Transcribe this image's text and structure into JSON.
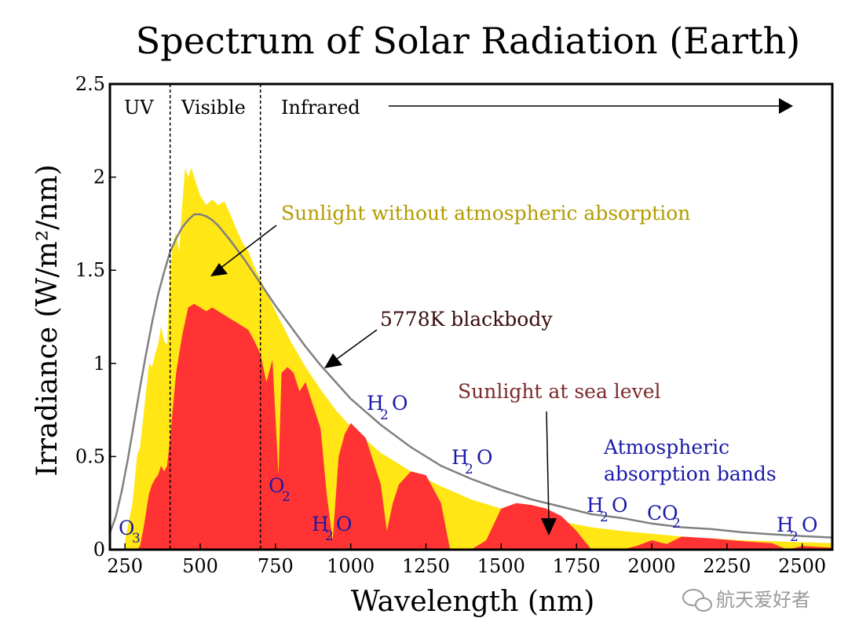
{
  "chart_data": {
    "type": "area",
    "title": "Spectrum of Solar Radiation (Earth)",
    "xlabel": "Wavelength (nm)",
    "ylabel": "Irradiance (W/m²/nm)",
    "xlim": [
      200,
      2600
    ],
    "ylim": [
      0,
      2.5
    ],
    "xticks": [
      "250",
      "500",
      "750",
      "1000",
      "1250",
      "1500",
      "1750",
      "2000",
      "2250",
      "2500"
    ],
    "yticks": [
      "0",
      "0.5",
      "1",
      "1.5",
      "2",
      "2.5"
    ],
    "grid": false,
    "regions": [
      {
        "label": "UV",
        "boundary_nm": 400
      },
      {
        "label": "Visible",
        "boundary_nm": 700
      },
      {
        "label": "Infrared",
        "boundary_nm": null
      }
    ],
    "series": [
      {
        "name": "Sunlight without atmospheric absorption",
        "color": "#ffe614",
        "x": [
          250,
          275,
          290,
          300,
          310,
          320,
          330,
          340,
          350,
          360,
          370,
          380,
          390,
          400,
          410,
          420,
          430,
          440,
          450,
          460,
          470,
          480,
          490,
          500,
          520,
          540,
          560,
          580,
          600,
          620,
          640,
          660,
          680,
          700,
          750,
          800,
          850,
          900,
          950,
          1000,
          1100,
          1200,
          1300,
          1400,
          1500,
          1600,
          1700,
          1800,
          1900,
          2000,
          2100,
          2200,
          2300,
          2400,
          2500,
          2600
        ],
        "values": [
          0.05,
          0.25,
          0.5,
          0.55,
          0.7,
          0.85,
          1.0,
          0.98,
          1.05,
          1.1,
          1.2,
          1.12,
          1.1,
          1.5,
          1.65,
          1.7,
          1.6,
          1.85,
          2.05,
          2.0,
          2.05,
          2.0,
          1.95,
          1.9,
          1.85,
          1.88,
          1.85,
          1.87,
          1.8,
          1.72,
          1.65,
          1.6,
          1.52,
          1.45,
          1.28,
          1.12,
          0.98,
          0.86,
          0.75,
          0.66,
          0.52,
          0.42,
          0.34,
          0.27,
          0.22,
          0.18,
          0.15,
          0.12,
          0.1,
          0.085,
          0.07,
          0.06,
          0.05,
          0.045,
          0.04,
          0.035
        ]
      },
      {
        "name": "5778K blackbody",
        "color": "#808080",
        "x": [
          200,
          220,
          240,
          260,
          280,
          300,
          320,
          340,
          360,
          380,
          400,
          420,
          440,
          460,
          480,
          500,
          520,
          540,
          560,
          580,
          600,
          650,
          700,
          750,
          800,
          850,
          900,
          950,
          1000,
          1100,
          1200,
          1300,
          1400,
          1500,
          1600,
          1700,
          1800,
          1900,
          2000,
          2100,
          2200,
          2300,
          2400,
          2500,
          2600
        ],
        "values": [
          0.09,
          0.18,
          0.32,
          0.49,
          0.68,
          0.87,
          1.05,
          1.22,
          1.37,
          1.49,
          1.6,
          1.67,
          1.73,
          1.77,
          1.8,
          1.8,
          1.79,
          1.77,
          1.74,
          1.7,
          1.66,
          1.55,
          1.43,
          1.31,
          1.2,
          1.09,
          0.99,
          0.9,
          0.81,
          0.67,
          0.55,
          0.45,
          0.38,
          0.32,
          0.27,
          0.23,
          0.19,
          0.17,
          0.14,
          0.12,
          0.11,
          0.093,
          0.082,
          0.073,
          0.065
        ]
      },
      {
        "name": "Sunlight at sea level",
        "color": "#ff3333",
        "x": [
          290,
          300,
          310,
          320,
          330,
          340,
          350,
          360,
          370,
          380,
          390,
          400,
          420,
          440,
          460,
          480,
          500,
          520,
          540,
          560,
          580,
          600,
          620,
          640,
          660,
          680,
          700,
          720,
          740,
          760,
          770,
          790,
          810,
          830,
          850,
          870,
          900,
          920,
          940,
          960,
          980,
          1000,
          1050,
          1100,
          1120,
          1140,
          1160,
          1200,
          1250,
          1300,
          1330,
          1350,
          1400,
          1450,
          1500,
          1550,
          1600,
          1650,
          1700,
          1750,
          1800,
          1850,
          1900,
          1950,
          2000,
          2050,
          2100,
          2200,
          2300,
          2400,
          2450,
          2500,
          2600
        ],
        "values": [
          0.0,
          0.02,
          0.1,
          0.2,
          0.3,
          0.35,
          0.38,
          0.4,
          0.45,
          0.42,
          0.45,
          0.6,
          0.95,
          1.15,
          1.3,
          1.32,
          1.3,
          1.28,
          1.3,
          1.28,
          1.26,
          1.24,
          1.22,
          1.2,
          1.18,
          1.12,
          1.05,
          0.9,
          1.02,
          0.4,
          0.95,
          0.98,
          0.95,
          0.85,
          0.9,
          0.8,
          0.65,
          0.3,
          0.05,
          0.5,
          0.62,
          0.68,
          0.6,
          0.35,
          0.1,
          0.25,
          0.35,
          0.42,
          0.4,
          0.25,
          0.0,
          0.0,
          0.0,
          0.05,
          0.22,
          0.25,
          0.24,
          0.22,
          0.18,
          0.1,
          0.0,
          0.0,
          0.0,
          0.02,
          0.05,
          0.03,
          0.07,
          0.06,
          0.045,
          0.035,
          0.0,
          0.02,
          0.01
        ]
      }
    ],
    "annotations": [
      {
        "text": "Sunlight without atmospheric absorption",
        "color": "#b39b00"
      },
      {
        "text": "5778K blackbody",
        "color": "#3a0b0b"
      },
      {
        "text": "Sunlight at sea level",
        "color": "#7a2a2a"
      },
      {
        "text": "Atmospheric",
        "color": "#1a1aa6"
      },
      {
        "text": "absorption bands",
        "color": "#1a1aa6"
      }
    ],
    "absorption_labels": [
      {
        "main": "O",
        "sub": "3",
        "x_nm": 250
      },
      {
        "main": "O",
        "sub": "2",
        "x_nm": 760
      },
      {
        "main": "H",
        "sub": "2",
        "tail": "O",
        "x_nm": 920
      },
      {
        "main": "H",
        "sub": "2",
        "tail": "O",
        "x_nm": 1100
      },
      {
        "main": "H",
        "sub": "2",
        "tail": "O",
        "x_nm": 1400
      },
      {
        "main": "H",
        "sub": "2",
        "tail": "O",
        "x_nm": 1870
      },
      {
        "main": "CO",
        "sub": "2",
        "x_nm": 2010
      },
      {
        "main": "H",
        "sub": "2",
        "tail": "O",
        "x_nm": 2500
      }
    ]
  },
  "watermark": "航天爱好者"
}
